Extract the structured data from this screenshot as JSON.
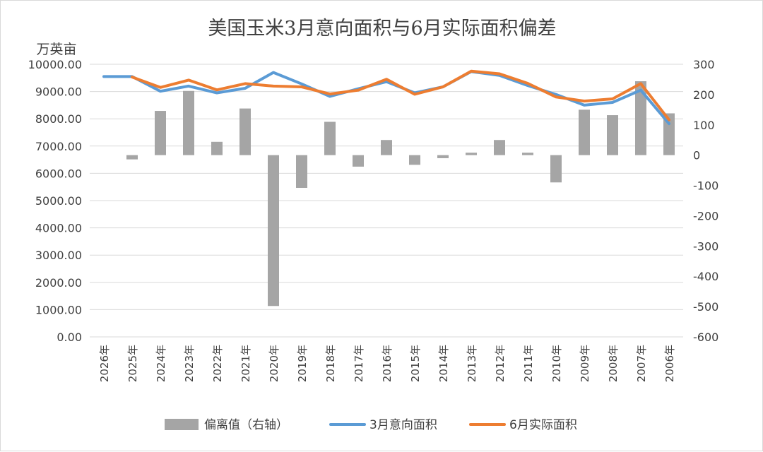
{
  "chart_data": {
    "type": "bar+line",
    "title": "美国玉米3月意向面积与6月实际面积偏差",
    "y_left_unit": "万英亩",
    "y_left_lim": [
      0,
      10000
    ],
    "y_left_ticks": [
      "0.00",
      "1000.00",
      "2000.00",
      "3000.00",
      "4000.00",
      "5000.00",
      "6000.00",
      "7000.00",
      "8000.00",
      "9000.00",
      "10000.00"
    ],
    "y_right_lim": [
      -600,
      300
    ],
    "y_right_ticks": [
      "-600",
      "-500",
      "-400",
      "-300",
      "-200",
      "-100",
      "0",
      "100",
      "200",
      "300"
    ],
    "categories": [
      "2026年",
      "2025年",
      "2024年",
      "2023年",
      "2022年",
      "2021年",
      "2020年",
      "2019年",
      "2018年",
      "2017年",
      "2016年",
      "2015年",
      "2014年",
      "2013年",
      "2012年",
      "2011年",
      "2010年",
      "2009年",
      "2008年",
      "2007年",
      "2006年"
    ],
    "series": [
      {
        "name": "偏离值（右轴）",
        "type": "bar",
        "axis": "right",
        "color": "#a5a5a5",
        "values": [
          null,
          -14,
          146,
          212,
          44,
          154,
          -498,
          -108,
          110,
          -38,
          50,
          -32,
          -10,
          8,
          50,
          8,
          -90,
          150,
          132,
          244,
          138
        ]
      },
      {
        "name": "3月意向面积",
        "type": "line",
        "axis": "left",
        "color": "#5b9bd5",
        "values": [
          9550,
          9550,
          9010,
          9200,
          8950,
          9120,
          9700,
          9280,
          8820,
          9100,
          9360,
          8950,
          9170,
          9730,
          9590,
          9220,
          8890,
          8500,
          8600,
          9050,
          7820
        ]
      },
      {
        "name": "6月实际面积",
        "type": "line",
        "axis": "left",
        "color": "#ed7d31",
        "values": [
          null,
          9530,
          9150,
          9420,
          9060,
          9290,
          9200,
          9170,
          8910,
          9050,
          9450,
          8900,
          9170,
          9750,
          9650,
          9300,
          8800,
          8650,
          8730,
          9290,
          7960
        ]
      }
    ],
    "legend_position": "bottom"
  }
}
